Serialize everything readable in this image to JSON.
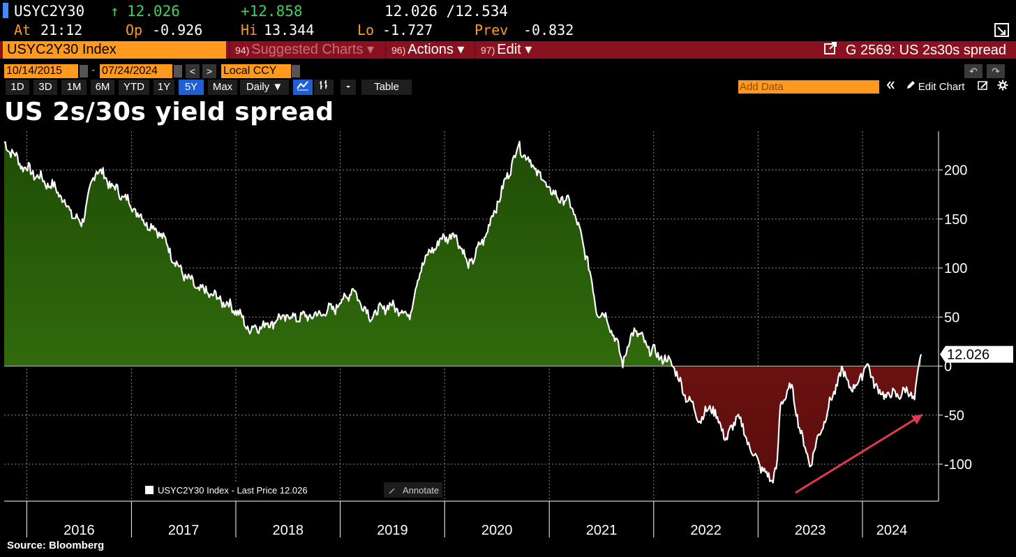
{
  "header": {
    "ticker": "USYC2Y30",
    "arrow": "↑",
    "last": "12.026",
    "change": "+12.858",
    "bidask": "12.026 /12.534",
    "at_label": "At",
    "at_value": "21:12",
    "op_label": "Op",
    "op_value": "-0.926",
    "hi_label": "Hi",
    "hi_value": "13.344",
    "lo_label": "Lo",
    "lo_value": "-1.727",
    "prev_label": "Prev",
    "prev_value": "-0.832"
  },
  "cmdbar": {
    "index": "USYC2Y30 Index",
    "suggested_num": "94)",
    "suggested": "Suggested Charts ▾",
    "actions_num": "96)",
    "actions": "Actions ▾",
    "edit_num": "97)",
    "edit": "Edit ▾",
    "graph": "G 2569: US 2s30s spread"
  },
  "controls": {
    "start_date": "10/14/2015",
    "dash": "-",
    "end_date": "07/24/2024",
    "prev": "<",
    "next": ">",
    "currency": "Local CCY",
    "ranges": [
      "1D",
      "3D",
      "1M",
      "6M",
      "YTD",
      "1Y",
      "5Y",
      "Max"
    ],
    "active_range": "5Y",
    "period": "Daily ▼",
    "table": "Table",
    "add_data_placeholder": "Add Data",
    "edit_chart": "Edit Chart",
    "undo": "↶",
    "redo": "↷"
  },
  "title": "US 2s/30s yield spread",
  "source": "Source:  Bloomberg",
  "colors": {
    "positive_fill": "#3a7a10",
    "negative_fill": "#8a1a18",
    "line": "#ffffff",
    "arrow": "#e23a4a",
    "orange": "#ff9a1f",
    "header_red": "#8a1220"
  },
  "chart_data": {
    "type": "area",
    "series": [
      {
        "name": "USYC2Y30 Index - Last Price 12.026",
        "x": [
          "2015-10-14",
          "2015-12-15",
          "2016-02-15",
          "2016-04-15",
          "2016-06-15",
          "2016-07-10",
          "2016-09-01",
          "2016-10-20",
          "2016-12-15",
          "2017-02-15",
          "2017-04-15",
          "2017-06-15",
          "2017-08-15",
          "2017-10-15",
          "2017-12-31",
          "2018-02-15",
          "2018-04-15",
          "2018-06-15",
          "2018-08-20",
          "2018-10-15",
          "2018-12-15",
          "2019-02-15",
          "2019-04-15",
          "2019-06-15",
          "2019-08-01",
          "2019-08-28",
          "2019-10-15",
          "2019-12-15",
          "2020-01-31",
          "2020-03-05",
          "2020-03-20",
          "2020-05-15",
          "2020-07-15",
          "2020-09-15",
          "2020-11-15",
          "2021-01-15",
          "2021-03-20",
          "2021-05-15",
          "2021-06-15",
          "2021-07-25",
          "2021-09-15",
          "2021-10-25",
          "2021-12-15",
          "2022-02-01",
          "2022-03-10",
          "2022-03-31",
          "2022-04-20",
          "2022-06-15",
          "2022-07-20",
          "2022-09-15",
          "2022-10-20",
          "2022-12-15",
          "2023-02-15",
          "2023-03-09",
          "2023-03-20",
          "2023-04-25",
          "2023-06-10",
          "2023-07-01",
          "2023-08-20",
          "2023-10-20",
          "2023-12-01",
          "2024-01-15",
          "2024-03-01",
          "2024-04-20",
          "2024-06-15",
          "2024-07-01",
          "2024-07-24"
        ],
        "values": [
          228,
          205,
          192,
          180,
          152,
          145,
          203,
          185,
          170,
          148,
          135,
          100,
          80,
          72,
          58,
          38,
          42,
          50,
          50,
          52,
          60,
          78,
          50,
          62,
          58,
          50,
          105,
          128,
          135,
          120,
          100,
          128,
          175,
          225,
          200,
          175,
          165,
          108,
          58,
          48,
          5,
          38,
          18,
          8,
          2,
          -15,
          -28,
          -55,
          -40,
          -75,
          -50,
          -90,
          -118,
          -100,
          -40,
          -20,
          -80,
          -100,
          -55,
          -5,
          -25,
          2,
          -28,
          -30,
          -25,
          -35,
          12
        ]
      }
    ],
    "xlabel": "",
    "ylabel": "",
    "x_tick_labels": [
      "2016",
      "2017",
      "2018",
      "2019",
      "2020",
      "2021",
      "2022",
      "2023",
      "2024"
    ],
    "y_ticks": [
      -100,
      -50,
      0,
      50,
      100,
      150,
      200
    ],
    "ylim": [
      -135,
      240
    ],
    "last_value_label": "12.026",
    "legend": "USYC2Y30 Index - Last Price 12.026",
    "annotate_label": "Annotate",
    "grid": true,
    "legend_position": "bottom-left",
    "annotation": "red arrow pointing up-right"
  }
}
